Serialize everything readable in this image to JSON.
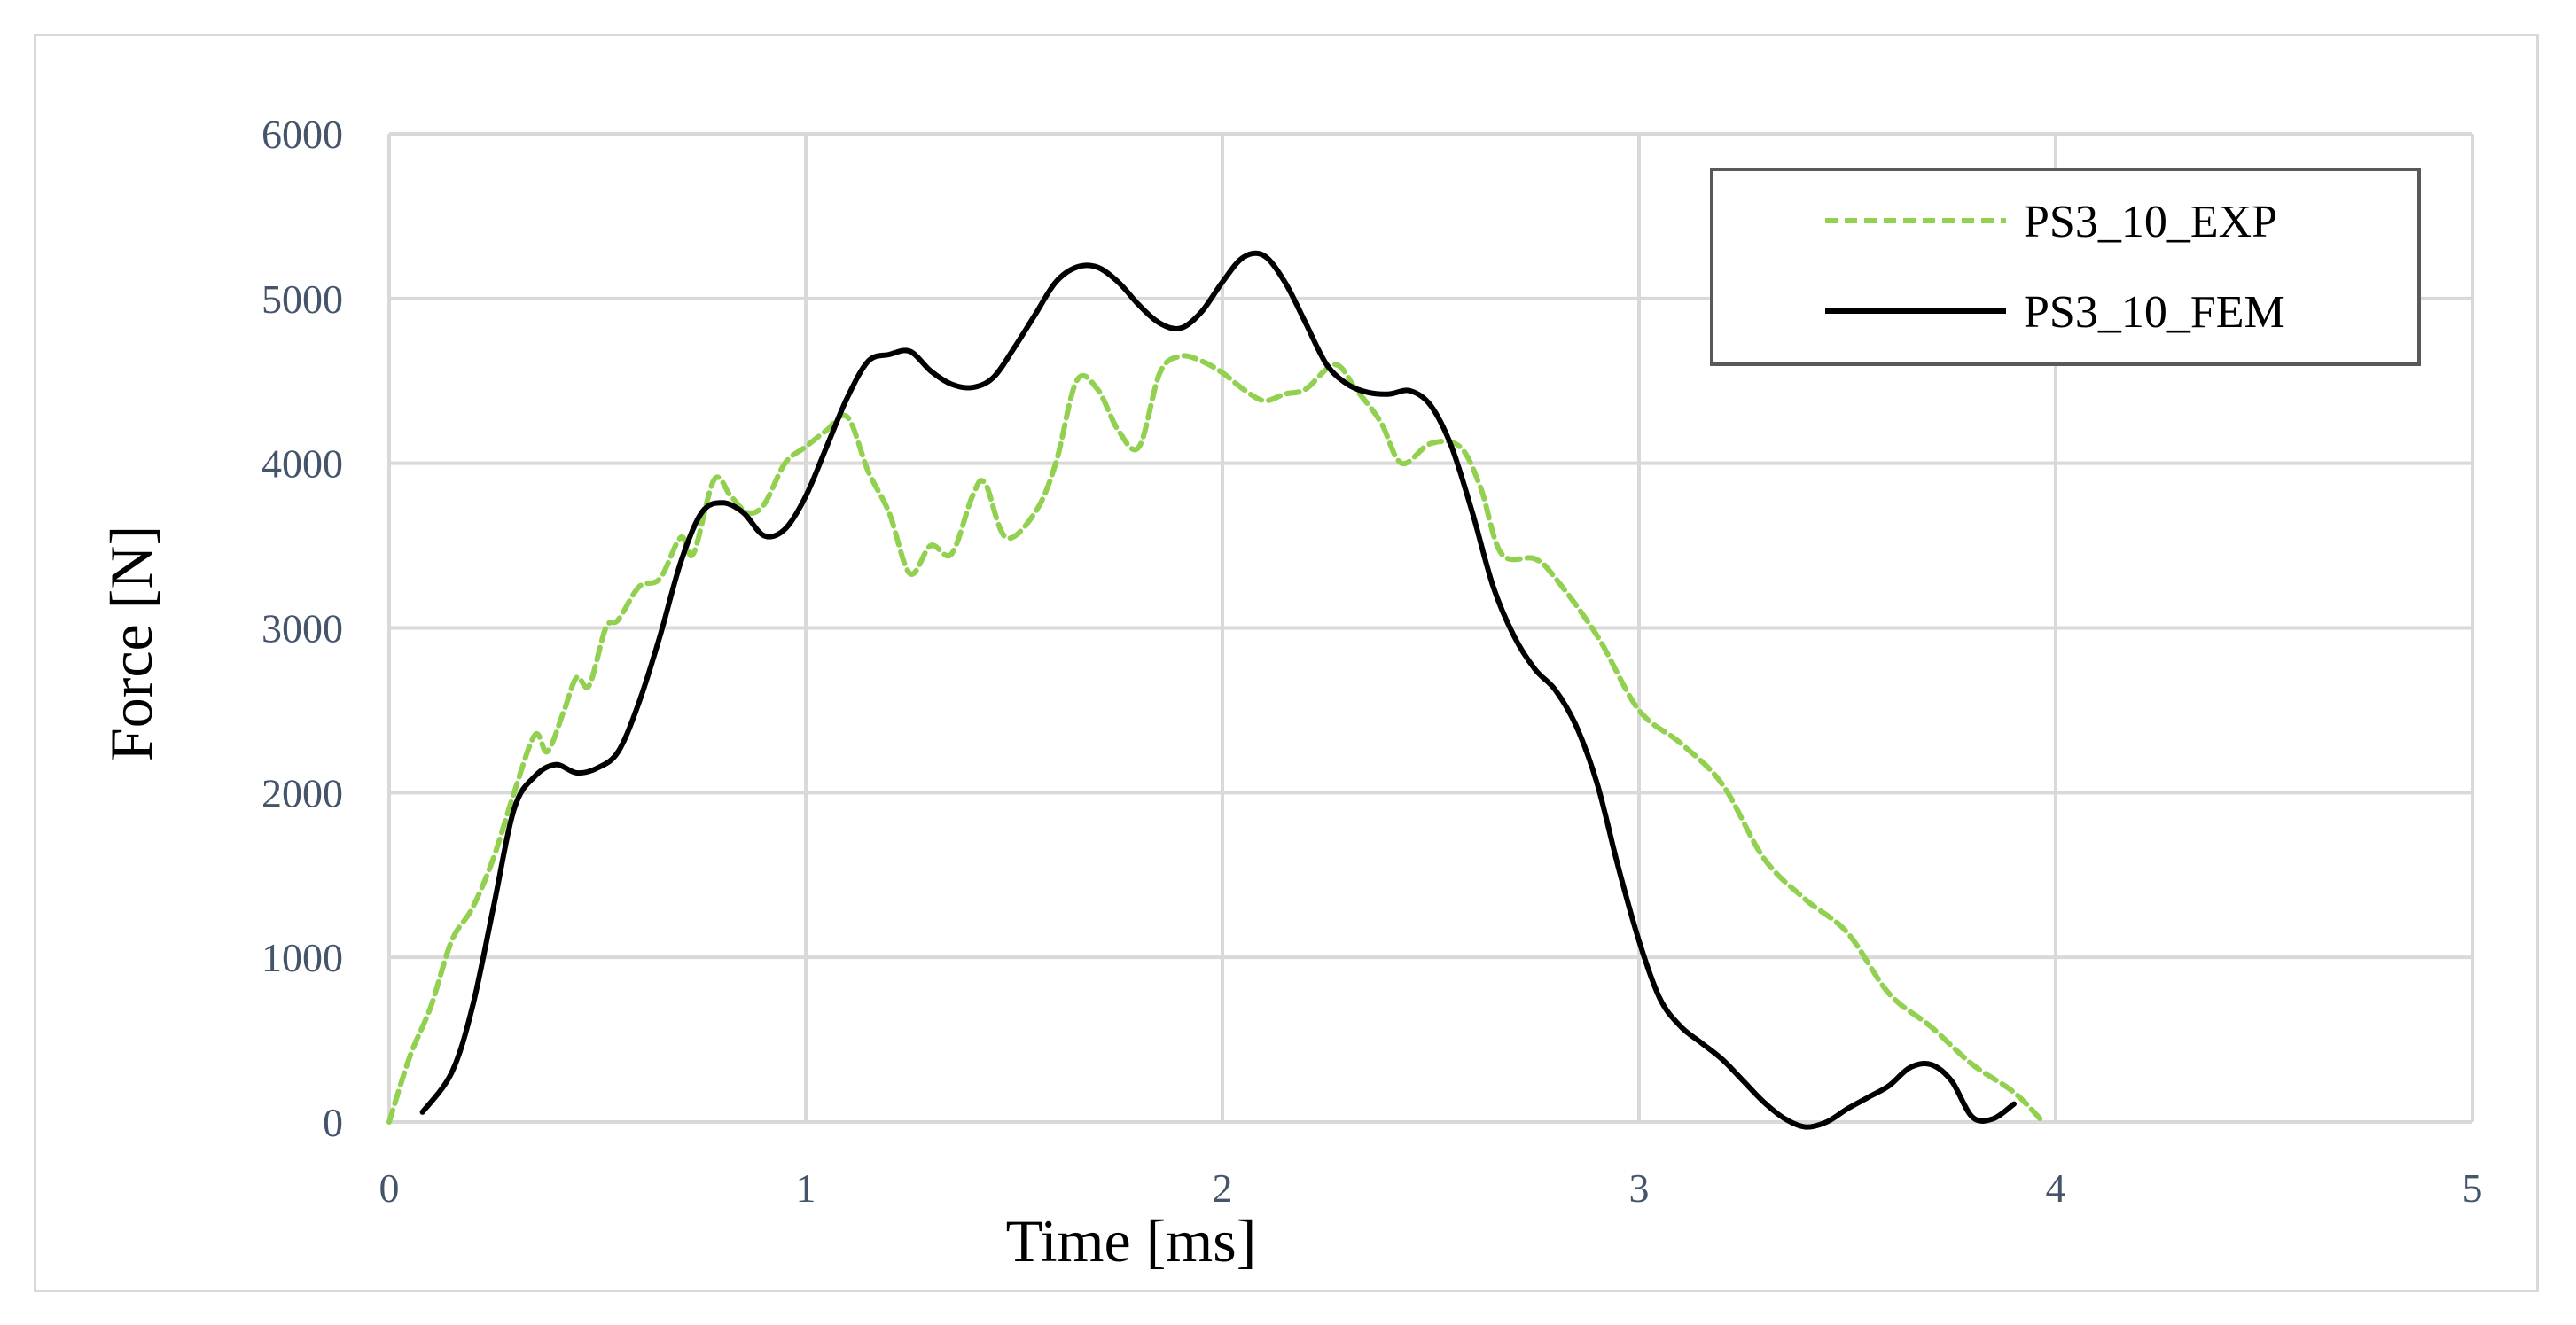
{
  "chart_data": {
    "type": "line",
    "xlabel": "Time [ms]",
    "ylabel": "Force [N]",
    "xlim": [
      0,
      5
    ],
    "ylim": [
      0,
      6000
    ],
    "x_ticks": [
      "0",
      "1",
      "2",
      "3",
      "4",
      "5"
    ],
    "y_ticks": [
      "0",
      "1000",
      "2000",
      "3000",
      "4000",
      "5000",
      "6000"
    ],
    "grid": true,
    "legend_position": "top-right",
    "colors": {
      "exp": "#92d050",
      "fem": "#000000",
      "grid": "#d9d9d9",
      "tick": "#44546a"
    },
    "series": [
      {
        "name": "PS3_10_EXP",
        "style": "dashed",
        "points": [
          [
            0.0,
            0
          ],
          [
            0.05,
            400
          ],
          [
            0.1,
            700
          ],
          [
            0.15,
            1100
          ],
          [
            0.2,
            1300
          ],
          [
            0.25,
            1600
          ],
          [
            0.3,
            2000
          ],
          [
            0.35,
            2350
          ],
          [
            0.38,
            2250
          ],
          [
            0.42,
            2500
          ],
          [
            0.45,
            2700
          ],
          [
            0.48,
            2650
          ],
          [
            0.52,
            3000
          ],
          [
            0.55,
            3050
          ],
          [
            0.6,
            3250
          ],
          [
            0.65,
            3300
          ],
          [
            0.7,
            3550
          ],
          [
            0.73,
            3450
          ],
          [
            0.78,
            3900
          ],
          [
            0.82,
            3800
          ],
          [
            0.86,
            3700
          ],
          [
            0.9,
            3750
          ],
          [
            0.95,
            4000
          ],
          [
            1.0,
            4100
          ],
          [
            1.05,
            4200
          ],
          [
            1.1,
            4280
          ],
          [
            1.15,
            3950
          ],
          [
            1.2,
            3700
          ],
          [
            1.25,
            3330
          ],
          [
            1.3,
            3500
          ],
          [
            1.35,
            3450
          ],
          [
            1.4,
            3800
          ],
          [
            1.43,
            3880
          ],
          [
            1.48,
            3550
          ],
          [
            1.55,
            3700
          ],
          [
            1.6,
            4000
          ],
          [
            1.65,
            4500
          ],
          [
            1.7,
            4450
          ],
          [
            1.75,
            4200
          ],
          [
            1.8,
            4100
          ],
          [
            1.85,
            4550
          ],
          [
            1.9,
            4650
          ],
          [
            1.95,
            4620
          ],
          [
            2.0,
            4550
          ],
          [
            2.05,
            4450
          ],
          [
            2.1,
            4380
          ],
          [
            2.15,
            4420
          ],
          [
            2.2,
            4450
          ],
          [
            2.27,
            4600
          ],
          [
            2.32,
            4450
          ],
          [
            2.38,
            4250
          ],
          [
            2.43,
            4000
          ],
          [
            2.5,
            4120
          ],
          [
            2.57,
            4100
          ],
          [
            2.62,
            3850
          ],
          [
            2.67,
            3450
          ],
          [
            2.75,
            3420
          ],
          [
            2.8,
            3300
          ],
          [
            2.9,
            2950
          ],
          [
            3.0,
            2500
          ],
          [
            3.1,
            2300
          ],
          [
            3.2,
            2050
          ],
          [
            3.3,
            1600
          ],
          [
            3.4,
            1350
          ],
          [
            3.5,
            1150
          ],
          [
            3.6,
            780
          ],
          [
            3.7,
            580
          ],
          [
            3.8,
            350
          ],
          [
            3.9,
            180
          ],
          [
            3.97,
            0
          ]
        ]
      },
      {
        "name": "PS3_10_FEM",
        "style": "solid",
        "points": [
          [
            0.08,
            60
          ],
          [
            0.15,
            300
          ],
          [
            0.2,
            700
          ],
          [
            0.25,
            1300
          ],
          [
            0.3,
            1900
          ],
          [
            0.35,
            2100
          ],
          [
            0.4,
            2170
          ],
          [
            0.45,
            2120
          ],
          [
            0.5,
            2150
          ],
          [
            0.55,
            2250
          ],
          [
            0.6,
            2550
          ],
          [
            0.65,
            2950
          ],
          [
            0.7,
            3400
          ],
          [
            0.75,
            3700
          ],
          [
            0.8,
            3760
          ],
          [
            0.85,
            3700
          ],
          [
            0.9,
            3560
          ],
          [
            0.95,
            3600
          ],
          [
            1.0,
            3800
          ],
          [
            1.05,
            4100
          ],
          [
            1.1,
            4400
          ],
          [
            1.15,
            4620
          ],
          [
            1.2,
            4660
          ],
          [
            1.25,
            4680
          ],
          [
            1.3,
            4560
          ],
          [
            1.35,
            4480
          ],
          [
            1.4,
            4460
          ],
          [
            1.45,
            4520
          ],
          [
            1.5,
            4700
          ],
          [
            1.55,
            4900
          ],
          [
            1.6,
            5100
          ],
          [
            1.65,
            5190
          ],
          [
            1.7,
            5190
          ],
          [
            1.75,
            5100
          ],
          [
            1.8,
            4960
          ],
          [
            1.85,
            4850
          ],
          [
            1.9,
            4820
          ],
          [
            1.95,
            4920
          ],
          [
            2.0,
            5100
          ],
          [
            2.05,
            5250
          ],
          [
            2.1,
            5260
          ],
          [
            2.15,
            5100
          ],
          [
            2.2,
            4850
          ],
          [
            2.25,
            4600
          ],
          [
            2.3,
            4480
          ],
          [
            2.35,
            4430
          ],
          [
            2.4,
            4420
          ],
          [
            2.45,
            4440
          ],
          [
            2.5,
            4350
          ],
          [
            2.55,
            4100
          ],
          [
            2.6,
            3700
          ],
          [
            2.65,
            3250
          ],
          [
            2.7,
            2950
          ],
          [
            2.75,
            2750
          ],
          [
            2.8,
            2620
          ],
          [
            2.85,
            2400
          ],
          [
            2.9,
            2050
          ],
          [
            2.95,
            1550
          ],
          [
            3.0,
            1100
          ],
          [
            3.05,
            750
          ],
          [
            3.1,
            580
          ],
          [
            3.15,
            480
          ],
          [
            3.2,
            380
          ],
          [
            3.25,
            250
          ],
          [
            3.3,
            120
          ],
          [
            3.35,
            20
          ],
          [
            3.4,
            -30
          ],
          [
            3.45,
            0
          ],
          [
            3.5,
            80
          ],
          [
            3.55,
            150
          ],
          [
            3.6,
            220
          ],
          [
            3.65,
            330
          ],
          [
            3.7,
            350
          ],
          [
            3.75,
            250
          ],
          [
            3.8,
            30
          ],
          [
            3.85,
            20
          ],
          [
            3.9,
            110
          ]
        ]
      }
    ]
  }
}
